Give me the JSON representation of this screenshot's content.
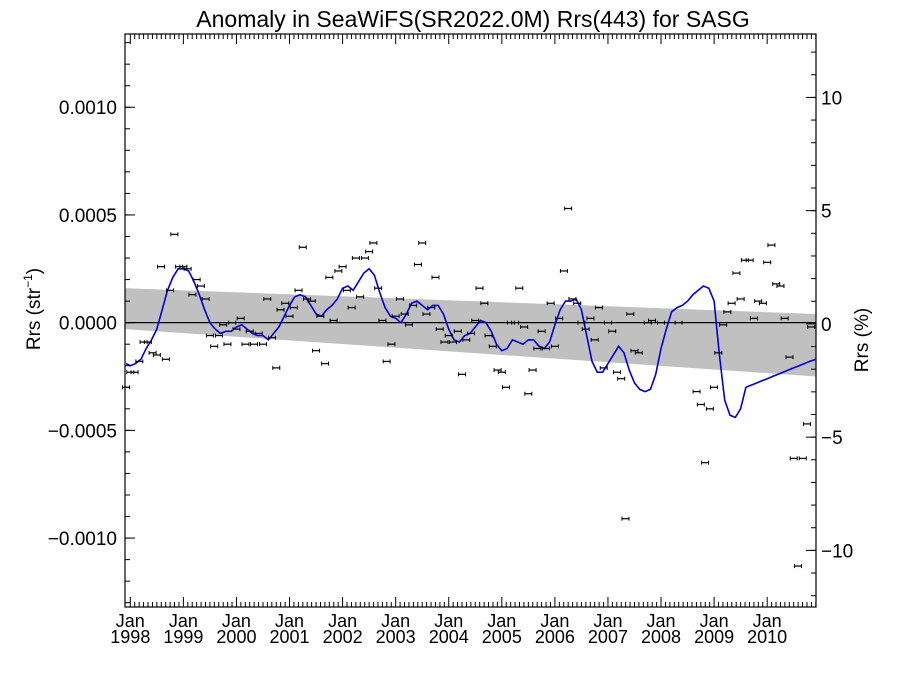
{
  "chart_data": {
    "type": "line",
    "title": "Anomaly in SeaWiFS(SR2022.0M) Rrs(443) for SASG",
    "ylabel_left": "Rrs (str",
    "ylabel_left_sup": "−1",
    "ylabel_left_close": ")",
    "ylabel_right": "Rrs (%)",
    "ylim_left": [
      -0.00132,
      0.00134
    ],
    "ylim_right": [
      -12.5,
      12.8
    ],
    "xlim": [
      1997.9,
      2010.92
    ],
    "left_ticks": [
      {
        "value": 0.001,
        "label": "0.0010"
      },
      {
        "value": 0.0005,
        "label": "0.0005"
      },
      {
        "value": 0.0,
        "label": "0.0000"
      },
      {
        "value": -0.0005,
        "label": "−0.0005"
      },
      {
        "value": -0.001,
        "label": "−0.0010"
      }
    ],
    "right_ticks": [
      {
        "value": 10,
        "label": "10"
      },
      {
        "value": 5,
        "label": "5"
      },
      {
        "value": 0,
        "label": "0"
      },
      {
        "value": -5,
        "label": "−5"
      },
      {
        "value": -10,
        "label": "−10"
      }
    ],
    "x_ticks": [
      {
        "value": 1998,
        "month": "Jan",
        "year": "1998"
      },
      {
        "value": 1999,
        "month": "Jan",
        "year": "1999"
      },
      {
        "value": 2000,
        "month": "Jan",
        "year": "2000"
      },
      {
        "value": 2001,
        "month": "Jan",
        "year": "2001"
      },
      {
        "value": 2002,
        "month": "Jan",
        "year": "2002"
      },
      {
        "value": 2003,
        "month": "Jan",
        "year": "2003"
      },
      {
        "value": 2004,
        "month": "Jan",
        "year": "2004"
      },
      {
        "value": 2005,
        "month": "Jan",
        "year": "2005"
      },
      {
        "value": 2006,
        "month": "Jan",
        "year": "2006"
      },
      {
        "value": 2007,
        "month": "Jan",
        "year": "2007"
      },
      {
        "value": 2008,
        "month": "Jan",
        "year": "2008"
      },
      {
        "value": 2009,
        "month": "Jan",
        "year": "2009"
      },
      {
        "value": 2010,
        "month": "Jan",
        "year": "2010"
      }
    ],
    "trend_band": {
      "x": [
        1997.9,
        2010.92
      ],
      "upper": [
        0.00016,
        4e-05
      ],
      "lower": [
        -3e-05,
        -0.00025
      ]
    },
    "zero_line": 0,
    "colors": {
      "smooth": "#0000dd",
      "band": "#c0c0c0",
      "points": "#000000"
    },
    "points": [
      {
        "x": 1997.92,
        "y": -0.0003
      },
      {
        "x": 1998.0,
        "y": -0.00023
      },
      {
        "x": 1998.08,
        "y": -0.00023
      },
      {
        "x": 1998.17,
        "y": -0.00018
      },
      {
        "x": 1998.25,
        "y": -9e-05
      },
      {
        "x": 1998.33,
        "y": -9e-05
      },
      {
        "x": 1998.42,
        "y": -0.00014
      },
      {
        "x": 1998.5,
        "y": -0.00015
      },
      {
        "x": 1998.58,
        "y": 0.00026
      },
      {
        "x": 1998.67,
        "y": -0.00017
      },
      {
        "x": 1998.75,
        "y": 0.00015
      },
      {
        "x": 1998.83,
        "y": 0.00041
      },
      {
        "x": 1998.92,
        "y": 0.00026
      },
      {
        "x": 1999.0,
        "y": 0.00026
      },
      {
        "x": 1999.08,
        "y": 0.00025
      },
      {
        "x": 1999.17,
        "y": 0.00013
      },
      {
        "x": 1999.25,
        "y": 0.0002
      },
      {
        "x": 1999.33,
        "y": 0.00017
      },
      {
        "x": 1999.42,
        "y": 0.00011
      },
      {
        "x": 1999.5,
        "y": -6e-05
      },
      {
        "x": 1999.58,
        "y": -0.00011
      },
      {
        "x": 1999.67,
        "y": -6e-05
      },
      {
        "x": 1999.75,
        "y": -1e-05
      },
      {
        "x": 1999.83,
        "y": -0.0001
      },
      {
        "x": 1999.92,
        "y": 0.0
      },
      {
        "x": 2000.0,
        "y": -3e-05
      },
      {
        "x": 2000.08,
        "y": 2e-05
      },
      {
        "x": 2000.17,
        "y": -0.0001
      },
      {
        "x": 2000.25,
        "y": -4e-05
      },
      {
        "x": 2000.33,
        "y": -0.0001
      },
      {
        "x": 2000.42,
        "y": -5e-05
      },
      {
        "x": 2000.5,
        "y": -0.0001
      },
      {
        "x": 2000.58,
        "y": 0.00011
      },
      {
        "x": 2000.67,
        "y": -7e-05
      },
      {
        "x": 2000.75,
        "y": -0.00021
      },
      {
        "x": 2000.83,
        "y": 6e-05
      },
      {
        "x": 2000.92,
        "y": 9e-05
      },
      {
        "x": 2001.0,
        "y": 3e-05
      },
      {
        "x": 2001.08,
        "y": 7e-05
      },
      {
        "x": 2001.17,
        "y": 0.00015
      },
      {
        "x": 2001.25,
        "y": 0.00035
      },
      {
        "x": 2001.33,
        "y": 0.00011
      },
      {
        "x": 2001.42,
        "y": 0.0001
      },
      {
        "x": 2001.5,
        "y": -0.00013
      },
      {
        "x": 2001.58,
        "y": 3e-05
      },
      {
        "x": 2001.67,
        "y": -0.00019
      },
      {
        "x": 2001.75,
        "y": 0.00021
      },
      {
        "x": 2001.83,
        "y": 1e-05
      },
      {
        "x": 2001.92,
        "y": 0.00024
      },
      {
        "x": 2002.0,
        "y": 0.00026
      },
      {
        "x": 2002.08,
        "y": 0.00015
      },
      {
        "x": 2002.17,
        "y": 7e-05
      },
      {
        "x": 2002.25,
        "y": 0.0003
      },
      {
        "x": 2002.33,
        "y": 0.00012
      },
      {
        "x": 2002.42,
        "y": 0.0003
      },
      {
        "x": 2002.5,
        "y": 0.00033
      },
      {
        "x": 2002.58,
        "y": 0.00037
      },
      {
        "x": 2002.67,
        "y": 0.00016
      },
      {
        "x": 2002.75,
        "y": 1e-05
      },
      {
        "x": 2002.83,
        "y": -0.00018
      },
      {
        "x": 2002.92,
        "y": -0.0001
      },
      {
        "x": 2003.0,
        "y": 3e-05
      },
      {
        "x": 2003.08,
        "y": 0.00011
      },
      {
        "x": 2003.17,
        "y": 4e-05
      },
      {
        "x": 2003.25,
        "y": -1e-05
      },
      {
        "x": 2003.33,
        "y": 8e-05
      },
      {
        "x": 2003.42,
        "y": 0.00027
      },
      {
        "x": 2003.5,
        "y": 0.00037
      },
      {
        "x": 2003.58,
        "y": 4e-05
      },
      {
        "x": 2003.67,
        "y": 7e-05
      },
      {
        "x": 2003.75,
        "y": 0.00021
      },
      {
        "x": 2003.83,
        "y": -3e-05
      },
      {
        "x": 2003.92,
        "y": -9e-05
      },
      {
        "x": 2004.0,
        "y": -6e-05
      },
      {
        "x": 2004.08,
        "y": -9e-05
      },
      {
        "x": 2004.17,
        "y": -4e-05
      },
      {
        "x": 2004.25,
        "y": -0.00024
      },
      {
        "x": 2004.33,
        "y": -8e-05
      },
      {
        "x": 2004.42,
        "y": -5e-05
      },
      {
        "x": 2004.5,
        "y": 1e-05
      },
      {
        "x": 2004.58,
        "y": 0.00016
      },
      {
        "x": 2004.67,
        "y": 9e-05
      },
      {
        "x": 2004.75,
        "y": -6e-05
      },
      {
        "x": 2004.83,
        "y": -0.00011
      },
      {
        "x": 2004.92,
        "y": -0.00022
      },
      {
        "x": 2005.0,
        "y": -0.00023
      },
      {
        "x": 2005.08,
        "y": -0.0003
      },
      {
        "x": 2005.17,
        "y": 0.0
      },
      {
        "x": 2005.25,
        "y": 0.0
      },
      {
        "x": 2005.33,
        "y": 0.00016
      },
      {
        "x": 2005.42,
        "y": -2e-05
      },
      {
        "x": 2005.5,
        "y": -0.00033
      },
      {
        "x": 2005.58,
        "y": -0.00022
      },
      {
        "x": 2005.67,
        "y": -0.00012
      },
      {
        "x": 2005.75,
        "y": -4e-05
      },
      {
        "x": 2005.83,
        "y": -0.00012
      },
      {
        "x": 2005.92,
        "y": 9e-05
      },
      {
        "x": 2006.0,
        "y": -0.00011
      },
      {
        "x": 2006.08,
        "y": 2e-05
      },
      {
        "x": 2006.17,
        "y": 0.00024
      },
      {
        "x": 2006.25,
        "y": 0.00053
      },
      {
        "x": 2006.33,
        "y": 0.00011
      },
      {
        "x": 2006.42,
        "y": 9e-05
      },
      {
        "x": 2006.5,
        "y": 0.0
      },
      {
        "x": 2006.58,
        "y": -3e-05
      },
      {
        "x": 2006.67,
        "y": 2e-05
      },
      {
        "x": 2006.75,
        "y": -8e-05
      },
      {
        "x": 2006.83,
        "y": 7e-05
      },
      {
        "x": 2006.92,
        "y": -0.00021
      },
      {
        "x": 2007.0,
        "y": 0.0
      },
      {
        "x": 2007.08,
        "y": -4e-05
      },
      {
        "x": 2007.17,
        "y": -0.00023
      },
      {
        "x": 2007.25,
        "y": -0.00026
      },
      {
        "x": 2007.33,
        "y": -0.00091
      },
      {
        "x": 2007.42,
        "y": 4e-05
      },
      {
        "x": 2007.5,
        "y": -0.00013
      },
      {
        "x": 2007.58,
        "y": -0.00014
      },
      {
        "x": 2007.75,
        "y": 0.0
      },
      {
        "x": 2007.83,
        "y": 1e-05
      },
      {
        "x": 2008.0,
        "y": 0.0
      },
      {
        "x": 2008.33,
        "y": 0.0
      },
      {
        "x": 2008.67,
        "y": -0.00032
      },
      {
        "x": 2008.75,
        "y": -0.00038
      },
      {
        "x": 2008.83,
        "y": -0.00065
      },
      {
        "x": 2008.92,
        "y": -0.0004
      },
      {
        "x": 2009.0,
        "y": -0.0003
      },
      {
        "x": 2009.08,
        "y": -0.00014
      },
      {
        "x": 2009.17,
        "y": -1e-05
      },
      {
        "x": 2009.25,
        "y": 5e-05
      },
      {
        "x": 2009.33,
        "y": 9e-05
      },
      {
        "x": 2009.42,
        "y": 0.00023
      },
      {
        "x": 2009.5,
        "y": 0.00011
      },
      {
        "x": 2009.58,
        "y": 0.00029
      },
      {
        "x": 2009.67,
        "y": 0.00029
      },
      {
        "x": 2009.75,
        "y": 2e-05
      },
      {
        "x": 2009.83,
        "y": 0.0001
      },
      {
        "x": 2009.92,
        "y": 9e-05
      },
      {
        "x": 2010.0,
        "y": 0.00028
      },
      {
        "x": 2010.08,
        "y": 0.00036
      },
      {
        "x": 2010.17,
        "y": 0.00018
      },
      {
        "x": 2010.25,
        "y": 0.00017
      },
      {
        "x": 2010.33,
        "y": 2e-05
      },
      {
        "x": 2010.42,
        "y": -0.00016
      },
      {
        "x": 2010.5,
        "y": -0.00063
      },
      {
        "x": 2010.58,
        "y": -0.00113
      },
      {
        "x": 2010.67,
        "y": -0.00063
      },
      {
        "x": 2010.75,
        "y": -0.00047
      },
      {
        "x": 2010.83,
        "y": -2e-05
      }
    ],
    "smooth": {
      "name": "",
      "x": [
        1997.92,
        1998.0,
        1998.1,
        1998.2,
        1998.3,
        1998.4,
        1998.5,
        1998.6,
        1998.7,
        1998.8,
        1998.9,
        1999.0,
        1999.1,
        1999.2,
        1999.3,
        1999.4,
        1999.5,
        1999.6,
        1999.7,
        1999.8,
        1999.9,
        2000.0,
        2000.1,
        2000.2,
        2000.3,
        2000.4,
        2000.5,
        2000.6,
        2000.7,
        2000.8,
        2000.9,
        2001.0,
        2001.1,
        2001.2,
        2001.3,
        2001.4,
        2001.5,
        2001.6,
        2001.7,
        2001.8,
        2001.9,
        2002.0,
        2002.1,
        2002.2,
        2002.3,
        2002.4,
        2002.5,
        2002.6,
        2002.7,
        2002.8,
        2002.9,
        2003.0,
        2003.1,
        2003.2,
        2003.3,
        2003.4,
        2003.5,
        2003.6,
        2003.7,
        2003.8,
        2003.9,
        2004.0,
        2004.1,
        2004.2,
        2004.3,
        2004.4,
        2004.5,
        2004.6,
        2004.7,
        2004.8,
        2004.9,
        2005.0,
        2005.1,
        2005.2,
        2005.3,
        2005.4,
        2005.5,
        2005.6,
        2005.7,
        2005.8,
        2005.9,
        2006.0,
        2006.1,
        2006.2,
        2006.3,
        2006.4,
        2006.5,
        2006.6,
        2006.7,
        2006.8,
        2006.9,
        2007.0,
        2007.1,
        2007.2,
        2007.3,
        2007.4,
        2007.5,
        2007.6,
        2007.7,
        2007.8,
        2007.9,
        2008.0,
        2008.1,
        2008.2,
        2008.3,
        2008.4,
        2008.5,
        2008.6,
        2008.7,
        2008.8,
        2008.9,
        2009.0,
        2009.1,
        2009.2,
        2009.3,
        2009.4,
        2009.5,
        2009.6,
        2009.7,
        2009.8,
        2009.9,
        2010.0,
        2010.1,
        2010.2,
        2010.3,
        2010.4,
        2010.5,
        2010.6,
        2010.7,
        2010.8,
        2010.92
      ],
      "y": [
        -0.00019,
        -0.0002,
        -0.00019,
        -0.00017,
        -0.00012,
        -8e-05,
        -3e-05,
        6e-05,
        0.00015,
        0.00021,
        0.00025,
        0.00025,
        0.00024,
        0.00019,
        0.00013,
        6e-05,
        0.0,
        -3e-05,
        -5e-05,
        -4e-05,
        -4e-05,
        -2e-05,
        -1e-05,
        -3e-05,
        -5e-05,
        -6e-05,
        -6e-05,
        -8e-05,
        -5e-05,
        -2e-05,
        3e-05,
        8e-05,
        0.00012,
        0.00013,
        0.00012,
        8e-05,
        4e-05,
        3e-05,
        6e-05,
        8e-05,
        0.00011,
        0.00016,
        0.00017,
        0.00015,
        0.00019,
        0.00023,
        0.00025,
        0.00022,
        0.00014,
        7e-05,
        3e-05,
        2e-05,
        0.0,
        4e-05,
        9e-05,
        0.0001,
        8e-05,
        6e-05,
        8e-05,
        8e-05,
        4e-05,
        -3e-05,
        -8e-05,
        -9e-05,
        -6e-05,
        -5e-05,
        -2e-05,
        1e-05,
        0.0,
        -4e-05,
        -0.0001,
        -0.00013,
        -0.00012,
        -8e-05,
        -9e-05,
        -0.0001,
        -8e-05,
        -8e-05,
        -0.00011,
        -0.00012,
        -9e-05,
        -1e-05,
        6e-05,
        0.0001,
        0.0001,
        0.00011,
        6e-05,
        -6e-05,
        -0.00018,
        -0.00023,
        -0.00023,
        -0.00019,
        -0.00015,
        -0.00011,
        -0.00014,
        -0.00022,
        -0.00028,
        -0.00031,
        -0.00032,
        -0.00031,
        -0.00024,
        -0.00012,
        -3e-05,
        5e-05,
        7e-05,
        8e-05,
        0.0001,
        0.00013,
        0.00015,
        0.00017,
        0.00016,
        0.0001,
        -0.00015,
        -0.00036,
        -0.00043,
        -0.00044,
        -0.0004,
        -0.0003,
        -0.00029,
        -0.00028,
        -0.00027,
        -0.00026,
        -0.00025,
        -0.00024,
        -0.00023,
        -0.00022,
        -0.00021,
        -0.0002,
        -0.00019,
        -0.00018,
        -0.00017
      ]
    }
  }
}
